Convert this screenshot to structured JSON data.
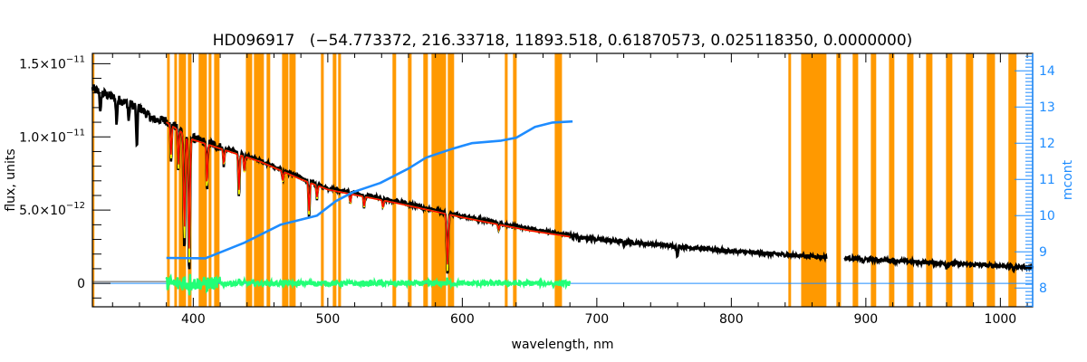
{
  "chart_data": {
    "type": "line",
    "title": "HD096917   (−54.773372, 216.33718, 11893.518, 0.61870573, 0.025118350, 0.0000000)",
    "xlabel": "wavelength, nm",
    "ylabel": "flux, units",
    "ylabel_right": "mcont",
    "xlim": [
      325,
      1024
    ],
    "ylim": [
      -1.6e-12,
      1.57e-11
    ],
    "ylim_right": [
      7.48,
      14.48
    ],
    "x_ticks": [
      "400",
      "500",
      "600",
      "700",
      "800",
      "900",
      "1000"
    ],
    "y_ticks": [
      {
        "value": 0,
        "mant": "0",
        "exp": ""
      },
      {
        "value": 5e-12,
        "mant": "5.0×10",
        "exp": "−12"
      },
      {
        "value": 1e-11,
        "mant": "1.0×10",
        "exp": "−11"
      },
      {
        "value": 1.5e-11,
        "mant": "1.5×10",
        "exp": "−11"
      }
    ],
    "y_ticks_right": [
      "8",
      "9",
      "10",
      "11",
      "12",
      "13",
      "14"
    ],
    "colors": {
      "flux": "#000000",
      "model": "#ff0000",
      "model_alt": "#ffff00",
      "residual": "#22ff77",
      "mcont": "#1e8cff",
      "masked": "#ff9900"
    },
    "masked_bands_nm": [
      [
        325,
        326.5
      ],
      [
        380.5,
        382.5
      ],
      [
        385.9,
        387.9
      ],
      [
        389.2,
        394.6
      ],
      [
        396,
        398.7
      ],
      [
        404,
        410.1
      ],
      [
        411.4,
        413.5
      ],
      [
        415.5,
        419.5
      ],
      [
        439.1,
        443.8
      ],
      [
        445.1,
        452.5
      ],
      [
        454.5,
        457.2
      ],
      [
        466,
        470.7
      ],
      [
        471.4,
        476.1
      ],
      [
        494.9,
        497
      ],
      [
        503.7,
        506.4
      ],
      [
        507.7,
        509.8
      ],
      [
        548.1,
        550.8
      ],
      [
        559.6,
        562.3
      ],
      [
        571,
        574.4
      ],
      [
        577.1,
        587.9
      ],
      [
        589.2,
        593.9
      ],
      [
        631.6,
        633.7
      ],
      [
        637.7,
        640.4
      ],
      [
        668.7,
        674.1
      ],
      [
        842.4,
        844.4
      ],
      [
        851.9,
        870.7
      ],
      [
        878.1,
        881.5
      ],
      [
        890.2,
        894.3
      ],
      [
        903.7,
        907.7
      ],
      [
        917.2,
        921.2
      ],
      [
        930.6,
        935.4
      ],
      [
        944.8,
        949.5
      ],
      [
        959.6,
        964.3
      ],
      [
        974.4,
        979.8
      ],
      [
        989.9,
        996
      ],
      [
        1006,
        1012
      ]
    ],
    "flux_continuum_1e-11": [
      [
        325,
        1.33
      ],
      [
        340,
        1.27
      ],
      [
        360,
        1.2
      ],
      [
        370,
        1.12
      ],
      [
        380,
        1.11
      ],
      [
        390,
        1.05
      ],
      [
        400,
        0.99
      ],
      [
        420,
        0.93
      ],
      [
        450,
        0.84
      ],
      [
        480,
        0.72
      ],
      [
        500,
        0.65
      ],
      [
        550,
        0.56
      ],
      [
        600,
        0.46
      ],
      [
        650,
        0.37
      ],
      [
        700,
        0.3
      ],
      [
        750,
        0.26
      ],
      [
        800,
        0.22
      ],
      [
        850,
        0.19
      ],
      [
        900,
        0.165
      ],
      [
        950,
        0.14
      ],
      [
        1000,
        0.12
      ],
      [
        1024,
        0.11
      ]
    ],
    "absorption_lines_1e-11": [
      [
        331,
        0.15
      ],
      [
        343,
        0.18
      ],
      [
        352,
        0.12
      ],
      [
        358,
        0.3
      ],
      [
        383.5,
        0.25
      ],
      [
        388.9,
        0.3
      ],
      [
        393.4,
        0.8
      ],
      [
        397,
        0.95
      ],
      [
        410.2,
        0.35
      ],
      [
        422.7,
        0.12
      ],
      [
        434,
        0.3
      ],
      [
        438,
        0.12
      ],
      [
        466.6,
        0.08
      ],
      [
        486.1,
        0.25
      ],
      [
        492,
        0.1
      ],
      [
        516.8,
        0.07
      ],
      [
        527,
        0.08
      ],
      [
        541,
        0.06
      ],
      [
        589,
        0.43
      ],
      [
        627,
        0.04
      ],
      [
        687,
        0.03
      ],
      [
        720,
        0.03
      ],
      [
        760,
        0.07
      ],
      [
        898,
        0.03
      ],
      [
        960,
        0.03
      ],
      [
        1010,
        0.03
      ]
    ],
    "model_range_nm": [
      380,
      680
    ],
    "mcont": [
      [
        380,
        8.83
      ],
      [
        409,
        8.82
      ],
      [
        438,
        9.25
      ],
      [
        465,
        9.75
      ],
      [
        492,
        10.0
      ],
      [
        506,
        10.4
      ],
      [
        519,
        10.65
      ],
      [
        539,
        10.9
      ],
      [
        560,
        11.3
      ],
      [
        573,
        11.6
      ],
      [
        593,
        11.85
      ],
      [
        607,
        12.0
      ],
      [
        629,
        12.07
      ],
      [
        640,
        12.15
      ],
      [
        654,
        12.45
      ],
      [
        667,
        12.57
      ],
      [
        682,
        12.6
      ]
    ],
    "residual_range_nm": [
      380,
      680
    ],
    "zero_line": 0
  }
}
